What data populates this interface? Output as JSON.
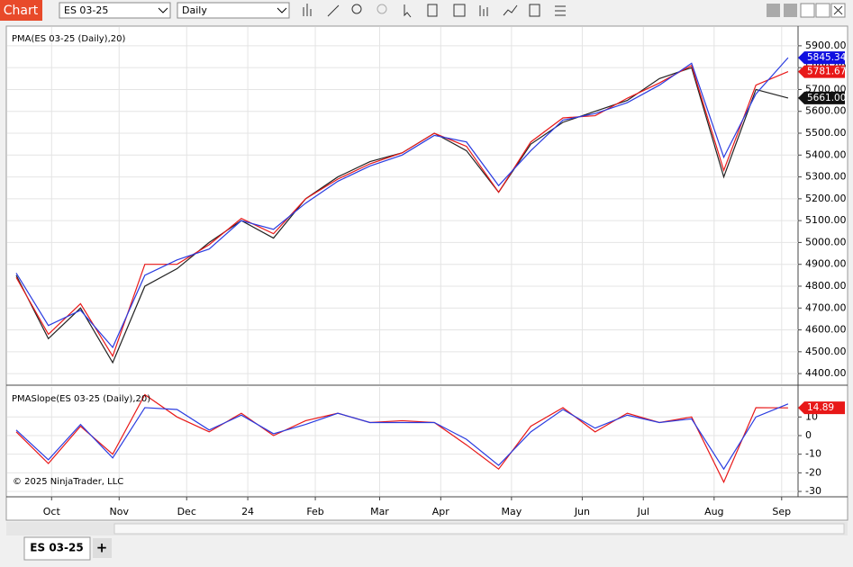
{
  "toolbar": {
    "app_title": "Chart",
    "instrument": "ES 03-25",
    "interval": "Daily"
  },
  "copyright": "© 2025 NinjaTrader, LLC",
  "tab": {
    "label": "ES 03-25",
    "add": "+"
  },
  "chart_data": [
    {
      "type": "line",
      "title": "PMA(ES 03-25 (Daily),20)",
      "x": [
        0,
        10,
        20,
        30,
        40,
        50,
        60,
        70,
        80,
        90,
        100,
        110,
        120,
        130,
        140,
        150,
        160,
        170,
        180,
        190,
        200,
        210,
        220,
        230,
        240
      ],
      "series": [
        {
          "color": "#222222",
          "values": [
            4850,
            4560,
            4700,
            4450,
            4800,
            4880,
            5000,
            5100,
            5020,
            5200,
            5300,
            5370,
            5410,
            5500,
            5420,
            5230,
            5450,
            5550,
            5600,
            5650,
            5750,
            5800,
            5300,
            5700,
            5661
          ]
        },
        {
          "color": "#e81818",
          "values": [
            4840,
            4580,
            4720,
            4480,
            4900,
            4900,
            4990,
            5110,
            5040,
            5200,
            5290,
            5360,
            5410,
            5500,
            5440,
            5230,
            5460,
            5570,
            5580,
            5660,
            5730,
            5810,
            5330,
            5720,
            5781.67
          ]
        },
        {
          "color": "#2a3ce0",
          "values": [
            4860,
            4620,
            4690,
            4520,
            4850,
            4920,
            4970,
            5100,
            5060,
            5180,
            5280,
            5350,
            5400,
            5490,
            5460,
            5260,
            5420,
            5560,
            5590,
            5640,
            5720,
            5820,
            5390,
            5680,
            5845.34
          ]
        }
      ],
      "xlim": [
        -2.8,
        243.1
      ],
      "ylim": [
        4351,
        5986
      ],
      "yticks": [
        {
          "value": 4400,
          "label": "4400.00"
        },
        {
          "value": 4500,
          "label": "4500.00"
        },
        {
          "value": 4600,
          "label": "4600.00"
        },
        {
          "value": 4700,
          "label": "4700.00"
        },
        {
          "value": 4800,
          "label": "4800.00"
        },
        {
          "value": 4900,
          "label": "4900.00"
        },
        {
          "value": 5000,
          "label": "5000.00"
        },
        {
          "value": 5100,
          "label": "5100.00"
        },
        {
          "value": 5200,
          "label": "5200.00"
        },
        {
          "value": 5300,
          "label": "5300.00"
        },
        {
          "value": 5400,
          "label": "5400.00"
        },
        {
          "value": 5500,
          "label": "5500.00"
        },
        {
          "value": 5600,
          "label": "5600.00"
        },
        {
          "value": 5700,
          "label": "5700.00"
        },
        {
          "value": 5800,
          "label": "5800.00"
        },
        {
          "value": 5900,
          "label": "5900.00"
        }
      ],
      "markers": [
        {
          "value": 5845.34,
          "label": "5845.34",
          "color": "#1010e0"
        },
        {
          "value": 5781.67,
          "label": "5781.67",
          "color": "#e81818"
        },
        {
          "value": 5661,
          "label": "5661.00",
          "color": "#111111"
        }
      ],
      "grid": true
    },
    {
      "type": "line",
      "title": "PMASlope(ES 03-25 (Daily),20)",
      "x": [
        0,
        10,
        20,
        30,
        40,
        50,
        60,
        70,
        80,
        90,
        100,
        110,
        120,
        130,
        140,
        150,
        160,
        170,
        180,
        190,
        200,
        210,
        220,
        230,
        240
      ],
      "series": [
        {
          "color": "#e81818",
          "values": [
            2,
            -15,
            5,
            -10,
            22,
            10,
            2,
            12,
            0,
            8,
            12,
            7,
            8,
            7,
            -5,
            -18,
            5,
            15,
            2,
            12,
            7,
            10,
            -25,
            15,
            14.89
          ]
        },
        {
          "color": "#2a3ce0",
          "values": [
            3,
            -13,
            6,
            -12,
            15,
            14,
            3,
            11,
            1,
            6,
            12,
            7,
            7,
            7,
            -2,
            -16,
            2,
            14,
            4,
            11,
            7,
            9,
            -18,
            10,
            17
          ]
        }
      ],
      "xlim": [
        -2.8,
        243.1
      ],
      "ylim": [
        -32.4,
        26.1
      ],
      "yticks": [
        -30,
        -20,
        -10,
        0,
        10
      ],
      "xticks": [
        {
          "value": 11,
          "label": "Oct"
        },
        {
          "value": 32,
          "label": "Nov"
        },
        {
          "value": 53,
          "label": "Dec"
        },
        {
          "value": 72,
          "label": "24"
        },
        {
          "value": 93,
          "label": "Feb"
        },
        {
          "value": 113,
          "label": "Mar"
        },
        {
          "value": 132,
          "label": "Apr"
        },
        {
          "value": 154,
          "label": "May"
        },
        {
          "value": 176,
          "label": "Jun"
        },
        {
          "value": 195,
          "label": "Jul"
        },
        {
          "value": 217,
          "label": "Aug"
        },
        {
          "value": 238,
          "label": "Sep"
        }
      ],
      "markers": [
        {
          "value": 14.89,
          "label": "14.89",
          "color": "#e81818"
        }
      ],
      "grid": true
    }
  ]
}
